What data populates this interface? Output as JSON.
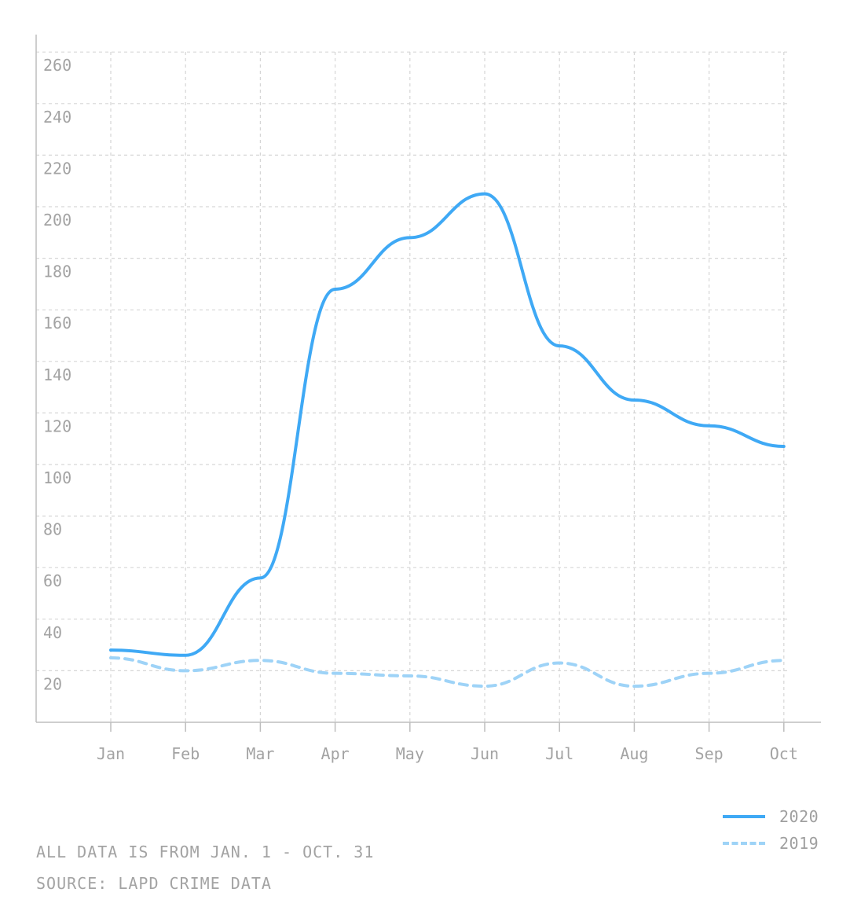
{
  "chart_data": {
    "type": "line",
    "categories": [
      "Jan",
      "Feb",
      "Mar",
      "Apr",
      "May",
      "Jun",
      "Jul",
      "Aug",
      "Sep",
      "Oct"
    ],
    "series": [
      {
        "name": "2020",
        "values": [
          28,
          26,
          56,
          168,
          188,
          205,
          146,
          125,
          115,
          107
        ],
        "color": "#3fa9f5",
        "style": "solid"
      },
      {
        "name": "2019",
        "values": [
          25,
          20,
          24,
          19,
          18,
          14,
          23,
          14,
          19,
          24
        ],
        "color": "#9ed3f7",
        "style": "dashed"
      }
    ],
    "y_ticks": [
      20,
      40,
      60,
      80,
      100,
      120,
      140,
      160,
      180,
      200,
      220,
      240,
      260
    ],
    "ylim": [
      0,
      260
    ],
    "grid": true,
    "legend_position": "bottom-right",
    "notes": [
      "ALL DATA IS FROM JAN. 1 - OCT. 31",
      "SOURCE: LAPD CRIME DATA"
    ]
  }
}
